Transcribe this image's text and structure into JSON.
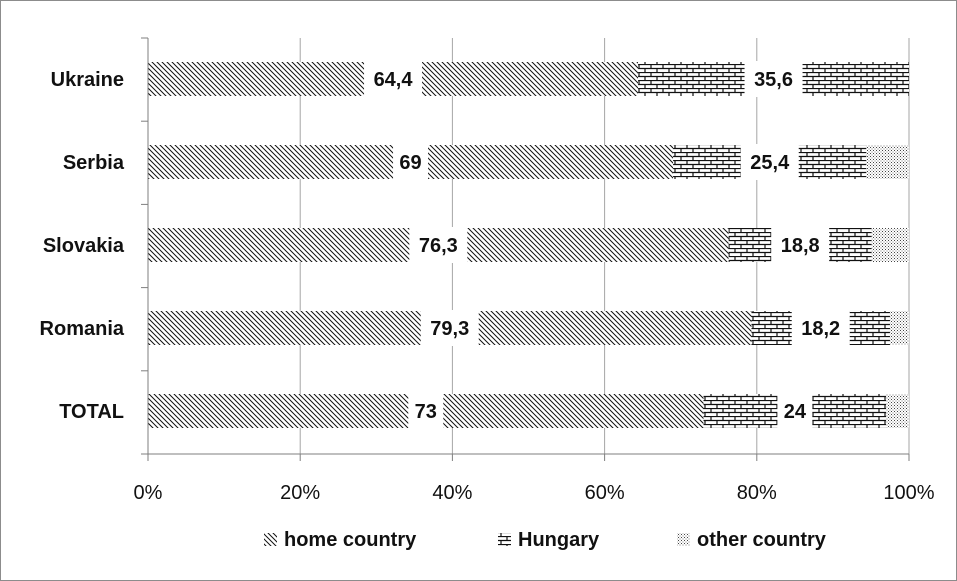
{
  "chart_data": {
    "type": "bar",
    "orientation": "horizontal",
    "stacked": "percent",
    "categories": [
      "Ukraine",
      "Serbia",
      "Slovakia",
      "Romania",
      "TOTAL"
    ],
    "series": [
      {
        "name": "home country",
        "values": [
          64.4,
          69,
          76.3,
          79.3,
          73
        ],
        "labels": [
          "64,4",
          "69",
          "76,3",
          "79,3",
          "73"
        ],
        "pattern": "diagonal-hatch"
      },
      {
        "name": "Hungary",
        "values": [
          35.6,
          25.4,
          18.8,
          18.2,
          24
        ],
        "labels": [
          "35,6",
          "25,4",
          "18,8",
          "18,2",
          "24"
        ],
        "pattern": "brick"
      },
      {
        "name": "other country",
        "values": [
          0,
          5.6,
          4.9,
          2.5,
          3
        ],
        "labels": null,
        "pattern": "dotted"
      }
    ],
    "xticks": [
      "0%",
      "20%",
      "40%",
      "60%",
      "80%",
      "100%"
    ],
    "xlim": [
      0,
      100
    ],
    "grid": "vertical",
    "legend_position": "bottom",
    "title": "",
    "xlabel": "",
    "ylabel": ""
  }
}
